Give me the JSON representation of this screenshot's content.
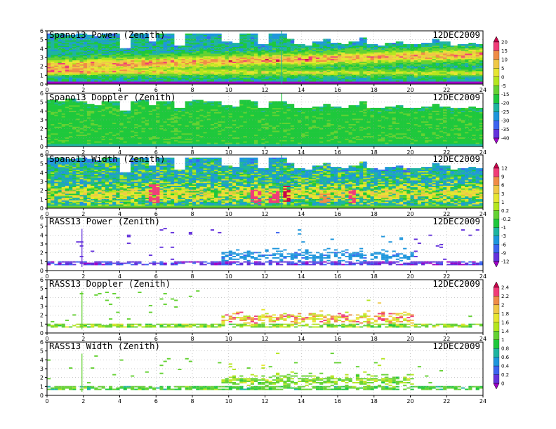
{
  "chart_data": [
    {
      "type": "heatmap",
      "title": "Spano13 Power (Zenith)",
      "date": "12DEC2009",
      "x_ticks": [
        "0",
        "2",
        "4",
        "6",
        "8",
        "10",
        "12",
        "14",
        "16",
        "18",
        "20",
        "22",
        "24"
      ],
      "y_ticks": [
        "0",
        "1",
        "2",
        "3",
        "4",
        "5",
        "6"
      ],
      "xlim": [
        0,
        24
      ],
      "ylim": [
        0,
        6
      ],
      "colorbar": "A",
      "coverage": "full",
      "top_profile": [
        5.6,
        5.6,
        5.5,
        5.6,
        5.5,
        5.3,
        5.6,
        5.6,
        4.0,
        5.6,
        5.6,
        4.8,
        5.6,
        5.6,
        4.3,
        5.6,
        5.6,
        5.6,
        5.6,
        4.8,
        4.6,
        5.6,
        5.6,
        4.5,
        5.6,
        5.6,
        5.0,
        4.4,
        4.3,
        4.7,
        5.0,
        4.6,
        4.4,
        4.8,
        5.2,
        4.5,
        4.3,
        4.6,
        4.8,
        4.4,
        4.4,
        4.6,
        5.0,
        4.7,
        4.3,
        4.4,
        4.6,
        4.5
      ],
      "bands": [
        {
          "center_start": 2.0,
          "center_end": 3.3,
          "width": 0.7,
          "peak": 13
        },
        {
          "center_start": 1.3,
          "center_end": 1.2,
          "width": 0.35,
          "peak": 2
        }
      ],
      "base_value": -22,
      "noise": 6,
      "surface_value": -42,
      "spike_hour": 12.9,
      "spikes": []
    },
    {
      "type": "heatmap",
      "title": "Spano13 Doppler (Zenith)",
      "date": "12DEC2009",
      "x_ticks": [
        "0",
        "2",
        "4",
        "6",
        "8",
        "10",
        "12",
        "14",
        "16",
        "18",
        "20",
        "22",
        "24"
      ],
      "y_ticks": [
        "0",
        "1",
        "2",
        "3",
        "4",
        "5",
        "6"
      ],
      "xlim": [
        0,
        24
      ],
      "ylim": [
        0,
        6
      ],
      "colorbar": "A",
      "coverage": "full",
      "top_profile": [
        5.2,
        5.0,
        5.3,
        5.0,
        4.8,
        4.6,
        5.0,
        5.1,
        4.0,
        5.0,
        5.2,
        4.6,
        5.1,
        5.0,
        4.2,
        5.0,
        5.2,
        5.0,
        5.0,
        4.6,
        4.5,
        5.2,
        5.0,
        4.3,
        5.0,
        5.1,
        4.8,
        4.3,
        4.2,
        4.5,
        4.8,
        4.4,
        4.2,
        4.6,
        5.0,
        4.3,
        4.2,
        4.4,
        4.6,
        4.3,
        4.3,
        4.4,
        4.8,
        4.5,
        4.2,
        4.3,
        4.4,
        4.3
      ],
      "bands": [],
      "base_value": -17,
      "noise": 3,
      "surface_value": -24,
      "spike_hour": 12.9,
      "spikes": []
    },
    {
      "type": "heatmap",
      "title": "Spano13 Width (Zenith)",
      "date": "12DEC2009",
      "x_ticks": [
        "0",
        "2",
        "4",
        "6",
        "8",
        "10",
        "12",
        "14",
        "16",
        "18",
        "20",
        "22",
        "24"
      ],
      "y_ticks": [
        "0",
        "1",
        "2",
        "3",
        "4",
        "5",
        "6"
      ],
      "xlim": [
        0,
        24
      ],
      "ylim": [
        0,
        6
      ],
      "colorbar": "B",
      "coverage": "full",
      "top_profile": [
        5.6,
        5.6,
        5.5,
        5.6,
        5.5,
        5.3,
        5.6,
        5.6,
        4.0,
        5.6,
        5.6,
        4.8,
        5.6,
        5.6,
        4.3,
        5.6,
        5.6,
        5.6,
        5.6,
        4.8,
        4.6,
        5.6,
        5.6,
        4.5,
        5.6,
        5.6,
        5.0,
        4.4,
        4.3,
        4.7,
        5.0,
        4.6,
        4.4,
        4.8,
        5.2,
        4.5,
        4.3,
        4.6,
        4.8,
        4.4,
        4.4,
        4.6,
        5.0,
        4.7,
        4.3,
        4.4,
        4.6,
        4.5
      ],
      "bands": [
        {
          "center_start": 1.6,
          "center_end": 1.6,
          "width": 0.9,
          "peak": 2
        }
      ],
      "base_value": -2,
      "noise": 3,
      "surface_value": 0,
      "spike_hour": 12.9,
      "spikes": [
        {
          "hour": 5.8,
          "y0": 0.6,
          "y1": 2.6,
          "value": 9
        },
        {
          "hour": 11.4,
          "y0": 0.4,
          "y1": 2.0,
          "value": 11
        },
        {
          "hour": 12.4,
          "y0": 0.5,
          "y1": 1.9,
          "value": 10
        },
        {
          "hour": 13.1,
          "y0": 0.6,
          "y1": 2.4,
          "value": 12
        },
        {
          "hour": 15.2,
          "y0": 0.5,
          "y1": 1.6,
          "value": 8
        },
        {
          "hour": 16.7,
          "y0": 0.5,
          "y1": 2.0,
          "value": 9
        }
      ]
    },
    {
      "type": "heatmap",
      "title": "RASS13 Power (Zenith)",
      "date": "12DEC2009",
      "x_ticks": [
        "0",
        "2",
        "4",
        "6",
        "8",
        "10",
        "12",
        "14",
        "16",
        "18",
        "20",
        "22",
        "24"
      ],
      "y_ticks": [
        "0",
        "1",
        "2",
        "3",
        "4",
        "5",
        "6"
      ],
      "xlim": [
        0,
        24
      ],
      "ylim": [
        0,
        6
      ],
      "colorbar": "B",
      "coverage": "sparse",
      "low_layer": {
        "y0": 0.45,
        "y1": 1.0,
        "value": -10
      },
      "hump": {
        "x0": 9.5,
        "x1": 20.0,
        "center": 1.6,
        "width": 0.5,
        "value": -5
      },
      "scatter_top": 4.8,
      "spike_hour": 1.9,
      "spikes": []
    },
    {
      "type": "heatmap",
      "title": "RASS13 Doppler (Zenith)",
      "date": "12DEC2009",
      "x_ticks": [
        "0",
        "2",
        "4",
        "6",
        "8",
        "10",
        "12",
        "14",
        "16",
        "18",
        "20",
        "22",
        "24"
      ],
      "y_ticks": [
        "0",
        "1",
        "2",
        "3",
        "4",
        "5",
        "6"
      ],
      "xlim": [
        0,
        24
      ],
      "ylim": [
        0,
        6
      ],
      "colorbar": "C",
      "coverage": "sparse",
      "low_layer": {
        "y0": 0.45,
        "y1": 1.0,
        "value": 1.3
      },
      "hump": {
        "x0": 9.5,
        "x1": 20.0,
        "center": 1.6,
        "width": 0.5,
        "value": 1.9
      },
      "scatter_top": 4.8,
      "spike_hour": 1.9,
      "spikes": []
    },
    {
      "type": "heatmap",
      "title": "RASS13 Width (Zenith)",
      "date": "12DEC2009",
      "x_ticks": [
        "0",
        "2",
        "4",
        "6",
        "8",
        "10",
        "12",
        "14",
        "16",
        "18",
        "20",
        "22",
        "24"
      ],
      "y_ticks": [
        "0",
        "1",
        "2",
        "3",
        "4",
        "5",
        "6"
      ],
      "xlim": [
        0,
        24
      ],
      "ylim": [
        0,
        6
      ],
      "colorbar": "C",
      "coverage": "sparse",
      "low_layer": {
        "y0": 0.45,
        "y1": 1.0,
        "value": 1.1
      },
      "hump": {
        "x0": 9.5,
        "x1": 20.0,
        "center": 1.6,
        "width": 0.5,
        "value": 1.3
      },
      "scatter_top": 4.8,
      "spike_hour": 1.9,
      "spikes": []
    }
  ],
  "colorbars": {
    "A": {
      "levels": [
        "20",
        "15",
        "10",
        "5",
        "0",
        "-5",
        "-15",
        "-20",
        "-25",
        "-30",
        "-35",
        "-40"
      ],
      "values": [
        20,
        15,
        10,
        5,
        0,
        -5,
        -15,
        -20,
        -25,
        -30,
        -35,
        -40
      ],
      "colors": [
        "#c8004a",
        "#f03c78",
        "#f08c46",
        "#f0c846",
        "#e6e632",
        "#b4e61e",
        "#64d232",
        "#1ec83c",
        "#1eb4a0",
        "#1e96dc",
        "#3c64f0",
        "#6432dc",
        "#a000c8"
      ]
    },
    "B": {
      "levels": [
        "12",
        "9",
        "6",
        "3",
        "1",
        "0.2",
        "-0.2",
        "-1",
        "-3",
        "-6",
        "-9",
        "-12"
      ],
      "values": [
        12,
        9,
        6,
        3,
        1,
        0.2,
        -0.2,
        -1,
        -3,
        -6,
        -9,
        -12
      ],
      "colors": [
        "#c8004a",
        "#f03c78",
        "#f08c46",
        "#f0c846",
        "#e6e632",
        "#b4e61e",
        "#64d232",
        "#1ec83c",
        "#1eb4a0",
        "#1e96dc",
        "#3c64f0",
        "#6432dc",
        "#a000c8"
      ]
    },
    "C": {
      "levels": [
        "2.4",
        "2.2",
        "2",
        "1.8",
        "1.6",
        "1.4",
        "1",
        "0.8",
        "0.6",
        "0.4",
        "0.2",
        "0"
      ],
      "values": [
        2.4,
        2.2,
        2.0,
        1.8,
        1.6,
        1.4,
        1.0,
        0.8,
        0.6,
        0.4,
        0.2,
        0
      ],
      "colors": [
        "#c8004a",
        "#f03c78",
        "#f08c46",
        "#f0c846",
        "#e6e632",
        "#b4e61e",
        "#64d232",
        "#1ec83c",
        "#1eb4a0",
        "#1e96dc",
        "#3c64f0",
        "#6432dc",
        "#a000c8"
      ]
    }
  }
}
